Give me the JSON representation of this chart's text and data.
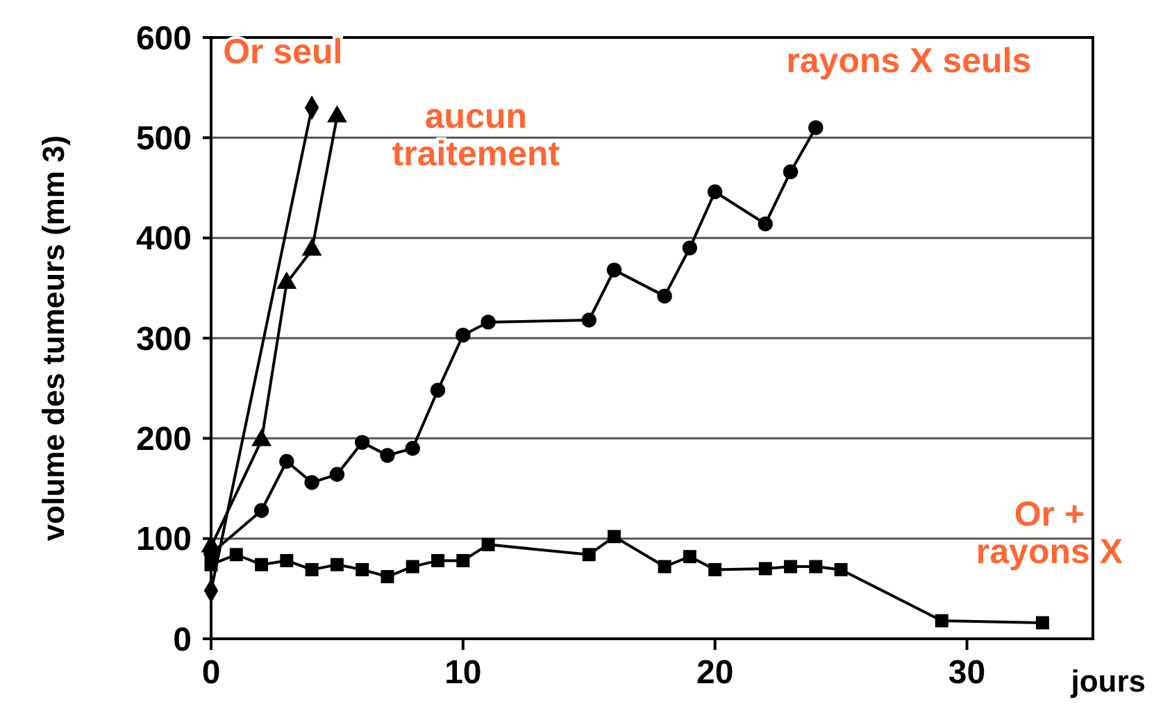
{
  "chart_data": {
    "type": "line",
    "xlabel": "jours",
    "ylabel": "volume des tumeurs (mm 3)",
    "xlim": [
      0,
      35
    ],
    "ylim": [
      0,
      600
    ],
    "xticks": [
      0,
      10,
      20,
      30
    ],
    "yticks": [
      0,
      100,
      200,
      300,
      400,
      500,
      600
    ],
    "grid": "y",
    "legend": false,
    "line_style": "solid",
    "series": [
      {
        "name": "Or seul",
        "color": "#000000",
        "marker": "diamond",
        "x": [
          0,
          4
        ],
        "values": [
          48,
          530
        ]
      },
      {
        "name": "aucun traitement",
        "color": "#000000",
        "marker": "triangle",
        "x": [
          0,
          1,
          2,
          3,
          4,
          5
        ],
        "values": [
          92,
          null,
          198,
          355,
          388,
          521
        ]
      },
      {
        "name": "rayons X seuls",
        "color": "#000000",
        "marker": "circle",
        "x": [
          0,
          1,
          2,
          3,
          4,
          5,
          6,
          7,
          8,
          9,
          10,
          11,
          15,
          16,
          18,
          19,
          20,
          22,
          23,
          24
        ],
        "values": [
          85,
          null,
          128,
          177,
          156,
          164,
          196,
          183,
          190,
          248,
          303,
          316,
          318,
          368,
          342,
          390,
          446,
          414,
          466,
          510
        ]
      },
      {
        "name": "Or + rayons X",
        "color": "#000000",
        "marker": "square",
        "x": [
          0,
          1,
          2,
          3,
          4,
          5,
          6,
          7,
          8,
          9,
          10,
          11,
          15,
          16,
          18,
          19,
          20,
          22,
          23,
          24,
          25,
          29,
          33
        ],
        "values": [
          74,
          84,
          74,
          78,
          69,
          74,
          69,
          62,
          72,
          78,
          78,
          94,
          84,
          102,
          72,
          82,
          69,
          70,
          72,
          72,
          69,
          18,
          16
        ]
      }
    ]
  }
}
